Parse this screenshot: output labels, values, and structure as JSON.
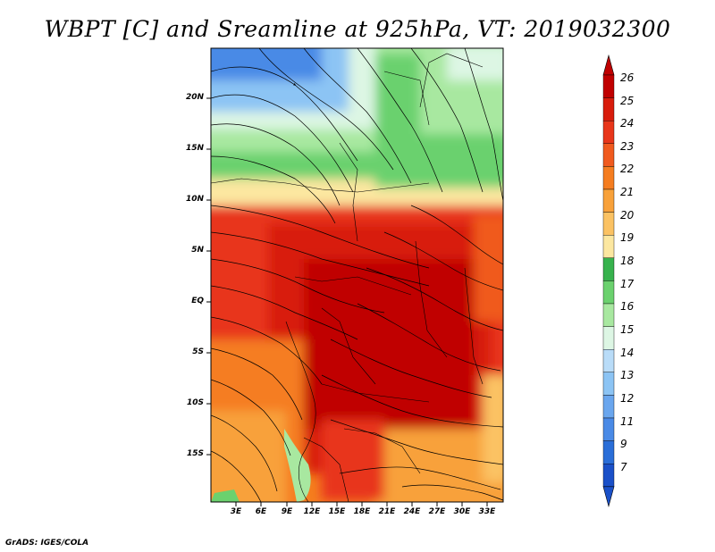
{
  "title": "WBPT [C] and Sreamline at 925hPa, VT: 2019032300",
  "map": {
    "lat_labels": [
      "20N",
      "15N",
      "10N",
      "5N",
      "EQ",
      "5S",
      "10S",
      "15S"
    ],
    "lon_labels": [
      "3E",
      "6E",
      "9E",
      "12E",
      "15E",
      "18E",
      "21E",
      "24E",
      "27E",
      "30E",
      "33E"
    ]
  },
  "colorbar": {
    "levels": [
      "26",
      "25",
      "24",
      "23",
      "22",
      "21",
      "20",
      "19",
      "18",
      "17",
      "16",
      "15",
      "14",
      "13",
      "12",
      "11",
      "9",
      "7"
    ],
    "colors": [
      "#c00000",
      "#d81c0c",
      "#e8361a",
      "#f05a1e",
      "#f57d20",
      "#f8a13a",
      "#fbc263",
      "#fce7a0",
      "#37b24d",
      "#6bd16e",
      "#a8e8a0",
      "#ddf6e4",
      "#b9dcf8",
      "#8cc4f4",
      "#6aa6ee",
      "#4a8ae6",
      "#2a6ed8",
      "#1a50c8"
    ]
  },
  "credit": "GrADS: IGES/COLA"
}
